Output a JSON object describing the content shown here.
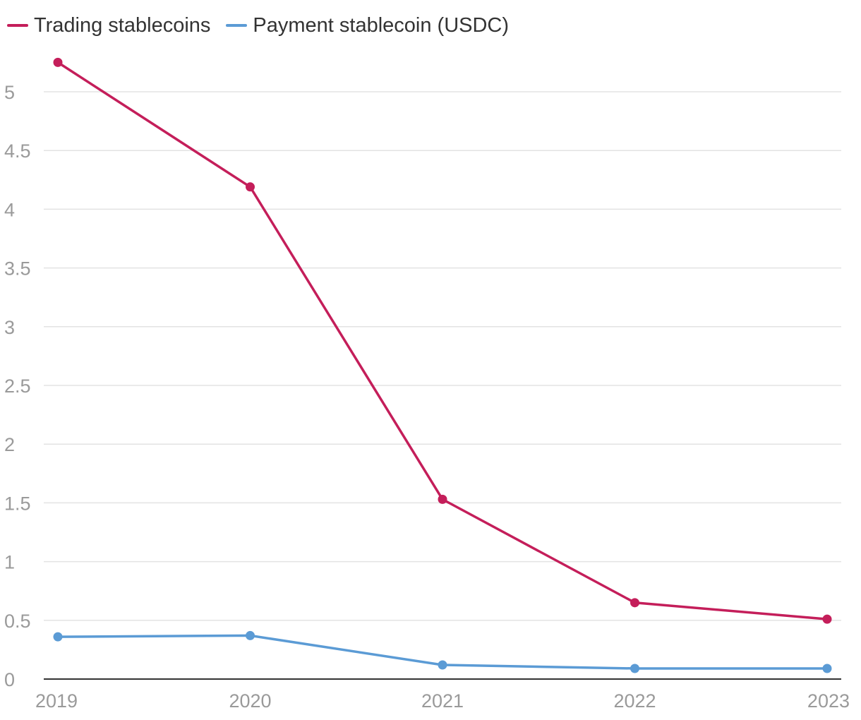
{
  "chart_data": {
    "type": "line",
    "title": "",
    "xlabel": "",
    "ylabel": "",
    "x": [
      "2019",
      "2020",
      "2021",
      "2022",
      "2023"
    ],
    "ylim": [
      0,
      5.35
    ],
    "yticks": [
      "0",
      "0.5",
      "1",
      "1.5",
      "2",
      "2.5",
      "3",
      "3.5",
      "4",
      "4.5",
      "5"
    ],
    "yticks_values": [
      0,
      0.5,
      1,
      1.5,
      2,
      2.5,
      3,
      3.5,
      4,
      4.5,
      5
    ],
    "grid": true,
    "legend_position": "top-left",
    "series": [
      {
        "name": "Trading stablecoins",
        "color": "#c41e5a",
        "values": [
          5.25,
          4.19,
          1.53,
          0.65,
          0.51
        ]
      },
      {
        "name": "Payment stablecoin (USDC)",
        "color": "#5b9bd5",
        "values": [
          0.36,
          0.37,
          0.12,
          0.09,
          0.09
        ]
      }
    ]
  }
}
